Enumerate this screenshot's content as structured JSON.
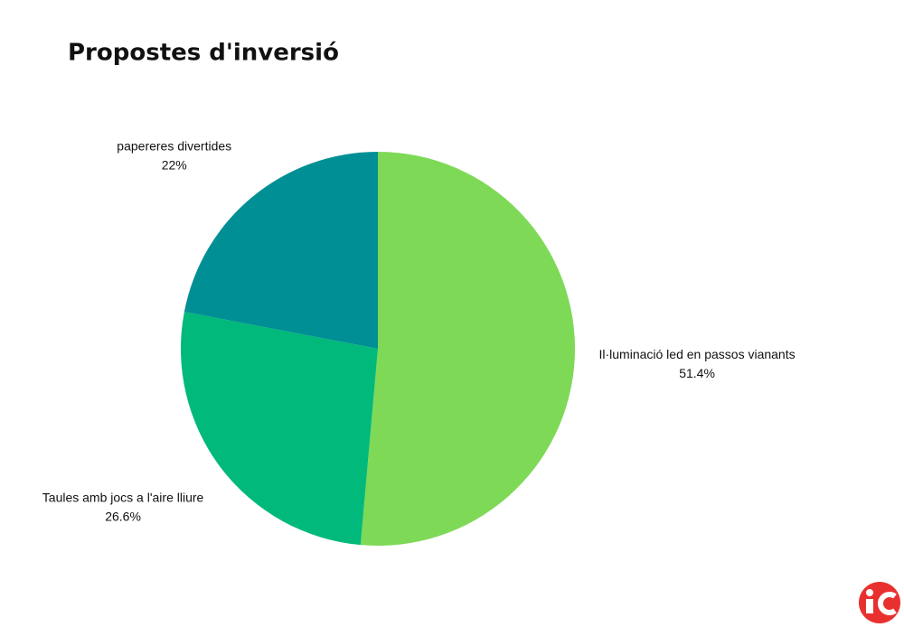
{
  "chart_data": {
    "type": "pie",
    "title": "Propostes d'inversió",
    "categories": [
      "Il·luminació led en passos vianants",
      "Taules amb jocs a l'aire lliure",
      "papereres divertides"
    ],
    "values": [
      51.4,
      26.6,
      22
    ],
    "value_labels": [
      "51.4%",
      "26.6%",
      "22%"
    ],
    "colors": [
      "#7ed957",
      "#00b97a",
      "#008f94"
    ]
  }
}
